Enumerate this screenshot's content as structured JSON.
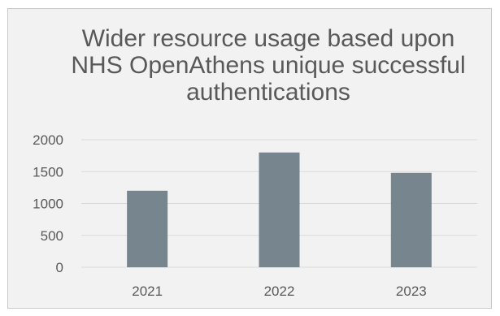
{
  "chart_data": {
    "type": "bar",
    "title": "Wider resource usage based upon NHS OpenAthens unique successful authentications",
    "categories": [
      "2021",
      "2022",
      "2023"
    ],
    "values": [
      1200,
      1800,
      1480
    ],
    "ylim": [
      0,
      2000
    ],
    "yticks": [
      0,
      500,
      1000,
      1500,
      2000
    ],
    "grid": true,
    "legend": "none",
    "colors": {
      "bar": "#77858e",
      "grid": "#d9d9d9",
      "axis": "#d9d9d9",
      "text": "#595959",
      "background": "#f2f2f2"
    }
  }
}
